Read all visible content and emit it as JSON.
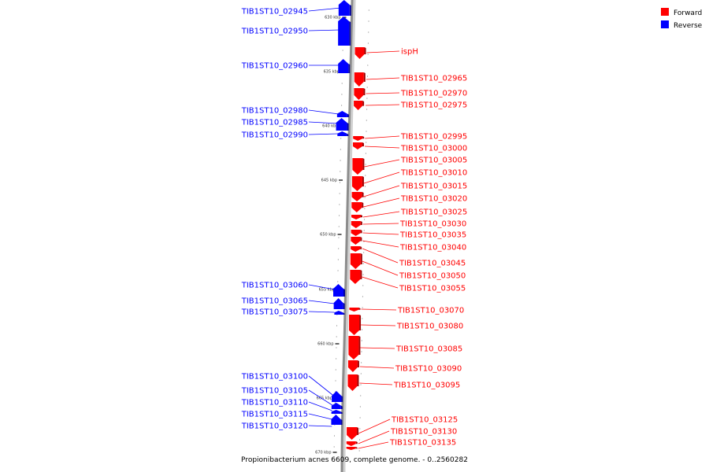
{
  "caption": "Propionibacterium acnes 6609, complete genome. - 0..2560282",
  "legend": [
    {
      "label": "Forward",
      "color": "#ff0000"
    },
    {
      "label": "Reverse",
      "color": "#0000ff"
    }
  ],
  "colors": {
    "forward": "#ff0000",
    "reverse": "#0000ff",
    "backbone": "#8c8c8c"
  },
  "ticks": [
    "630 kbp",
    "635 kbp",
    "640 kbp",
    "645 kbp",
    "650 kbp",
    "655 kbp",
    "660 kbp",
    "665 kbp",
    "670 kbp"
  ],
  "reverse_labels": [
    "TIB1ST10_02945",
    "TIB1ST10_02950",
    "TIB1ST10_02960",
    "TIB1ST10_02980",
    "TIB1ST10_02985",
    "TIB1ST10_02990",
    "TIB1ST10_03060",
    "TIB1ST10_03065",
    "TIB1ST10_03075",
    "TIB1ST10_03100",
    "TIB1ST10_03105",
    "TIB1ST10_03110",
    "TIB1ST10_03115",
    "TIB1ST10_03120"
  ],
  "forward_labels": [
    "ispH",
    "TIB1ST10_02965",
    "TIB1ST10_02970",
    "TIB1ST10_02975",
    "TIB1ST10_02995",
    "TIB1ST10_03000",
    "TIB1ST10_03005",
    "TIB1ST10_03010",
    "TIB1ST10_03015",
    "TIB1ST10_03020",
    "TIB1ST10_03025",
    "TIB1ST10_03030",
    "TIB1ST10_03035",
    "TIB1ST10_03040",
    "TIB1ST10_03045",
    "TIB1ST10_03050",
    "TIB1ST10_03055",
    "TIB1ST10_03070",
    "TIB1ST10_03080",
    "TIB1ST10_03085",
    "TIB1ST10_03090",
    "TIB1ST10_03095",
    "TIB1ST10_03125",
    "TIB1ST10_03130",
    "TIB1ST10_03135"
  ]
}
